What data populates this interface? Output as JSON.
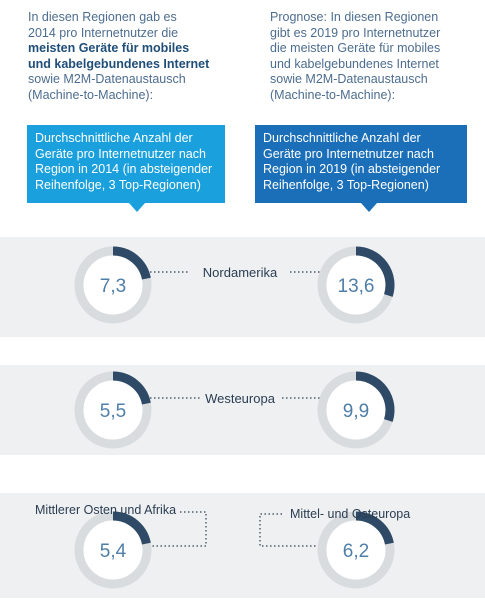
{
  "intro_left": {
    "line1": "In diesen Regionen gab es",
    "line2": "2014 pro Internetnutzer die",
    "line3_bold": "meisten Geräte für mobiles",
    "line4_bold": "und kabelgebundenes Internet",
    "line5": "sowie M2M-Datenaustausch",
    "line6": "(Machine-to-Machine):"
  },
  "intro_right": {
    "line1": "Prognose: In diesen Regionen",
    "line2": "gibt es 2019 pro Internetnutzer",
    "line3": "die meisten Geräte für mobiles",
    "line4": "und kabelgebundenes Internet",
    "line5": "sowie M2M-Datenaustausch",
    "line6": "(Machine-to-Machine):"
  },
  "callout_left": {
    "line1": "Durchschnittliche Anzahl der",
    "line2": "Geräte pro Internetnutzer nach",
    "line3": "Region in 2014 (in absteigender",
    "line4": "Reihenfolge, 3 Top-Regionen)"
  },
  "callout_right": {
    "line1": "Durchschnittliche Anzahl der",
    "line2": "Geräte pro Internetnutzer nach",
    "line3": "Region in 2019 (in absteigender",
    "line4": "Reihenfolge, 3 Top-Regionen)"
  },
  "colors": {
    "band": "#eef0f1",
    "ring_track": "#d9dcdf",
    "ring_fill": "#2e4a66",
    "value_text": "#4f7fa8",
    "region_text": "#2b3d52",
    "callout_2014": "#1aa0dc",
    "callout_2019": "#1b6fb8"
  },
  "chart_data": {
    "type": "donut",
    "series": [
      {
        "name": "2014",
        "labels": [
          "7,3",
          "5,5",
          "5,4"
        ],
        "values": [
          7.3,
          5.5,
          5.4
        ],
        "regions": [
          "Nordamerika",
          "Westeuropa",
          "Mittlerer Osten und Afrika"
        ]
      },
      {
        "name": "2019",
        "labels": [
          "13,6",
          "9,9",
          "6,2"
        ],
        "values": [
          13.6,
          9.9,
          6.2
        ],
        "regions": [
          "Nordamerika",
          "Westeuropa",
          "Mittel- und Osteuropa"
        ]
      }
    ],
    "ring_fraction": [
      [
        0.22,
        0.22,
        0.22
      ],
      [
        0.3,
        0.3,
        0.22
      ]
    ]
  }
}
